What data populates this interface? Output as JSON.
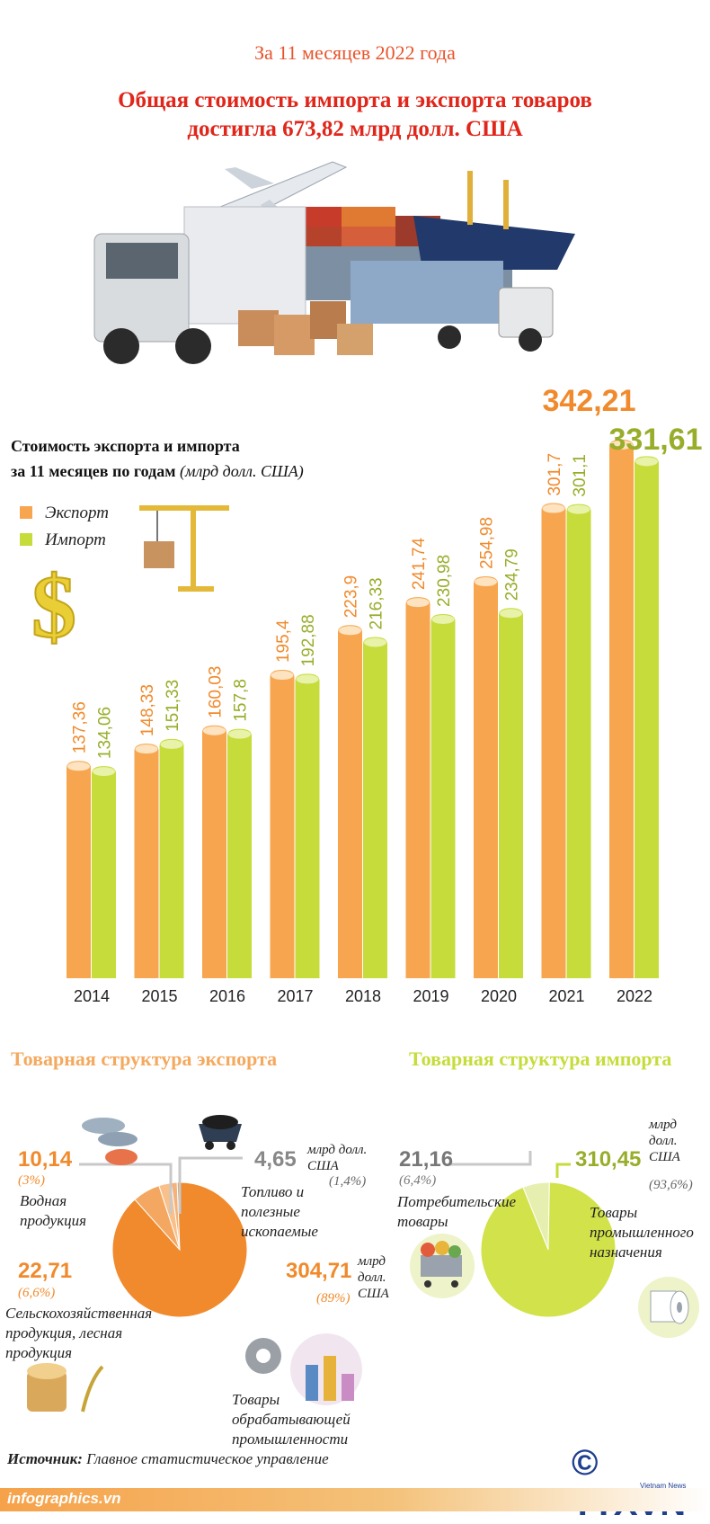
{
  "header": {
    "subtitle": "За 11 месяцев 2022 года",
    "title_line1": "Общая стоимость импорта и экспорта товаров",
    "title_line2": "достигла 673,82 млрд долл. США"
  },
  "colors": {
    "export": "#f7a64f",
    "import": "#c6dc3a",
    "export_text": "#f08a2c",
    "import_text": "#98ad2a",
    "title_red": "#e0261a"
  },
  "chart_title": {
    "line1": "Стоимость экспорта и импорта",
    "line2": "за 11 месяцев по годам",
    "unit": "(млрд долл. США)"
  },
  "chart_data": {
    "type": "bar",
    "categories": [
      "2014",
      "2015",
      "2016",
      "2017",
      "2018",
      "2019",
      "2020",
      "2021",
      "2022"
    ],
    "series": [
      {
        "name": "Экспорт",
        "values": [
          137.36,
          148.33,
          160.03,
          195.4,
          223.9,
          241.74,
          254.98,
          301.7,
          342.21
        ],
        "labels": [
          "137,36",
          "148,33",
          "160,03",
          "195,4",
          "223,9",
          "241,74",
          "254,98",
          "301,7",
          "342,21"
        ]
      },
      {
        "name": "Импорт",
        "values": [
          134.06,
          151.33,
          157.8,
          192.88,
          216.33,
          230.98,
          234.79,
          301.1,
          331.61
        ],
        "labels": [
          "134,06",
          "151,33",
          "157,8",
          "192,88",
          "216,33",
          "230,98",
          "234,79",
          "301,1",
          "331,61"
        ]
      }
    ],
    "legend": "top-left",
    "grid": false
  },
  "export_structure": {
    "title": "Товарная структура экспорта",
    "unit": "млрд долл. США",
    "slices": [
      {
        "label": "Водная продукция",
        "value_text": "10,14",
        "pct_text": "(3%)",
        "percent": 3.0
      },
      {
        "label": "Топливо и полезные ископаемые",
        "value_text": "4,65",
        "pct_text": "(1,4%)",
        "percent": 1.4
      },
      {
        "label": "Товары обрабатывающей промышленности",
        "value_text": "304,71",
        "pct_text": "(89%)",
        "percent": 89.0
      },
      {
        "label": "Сельскохозяйственная продукция, лесная продукция",
        "value_text": "22,71",
        "pct_text": "(6,6%)",
        "percent": 6.6
      }
    ]
  },
  "import_structure": {
    "title": "Товарная структура импорта",
    "unit": "млрд долл. США",
    "slices": [
      {
        "label": "Потребительские товары",
        "value_text": "21,16",
        "pct_text": "(6,4%)",
        "percent": 6.4
      },
      {
        "label": "Товары промышленного назначения",
        "value_text": "310,45",
        "pct_text": "(93,6%)",
        "percent": 93.6
      }
    ]
  },
  "footer": {
    "source_label": "Источник:",
    "source_text": "Главное статистическое управление",
    "site": "infographics.vn",
    "logo": "© TTXVN",
    "logo_sub": "Vietnam News Agency"
  }
}
